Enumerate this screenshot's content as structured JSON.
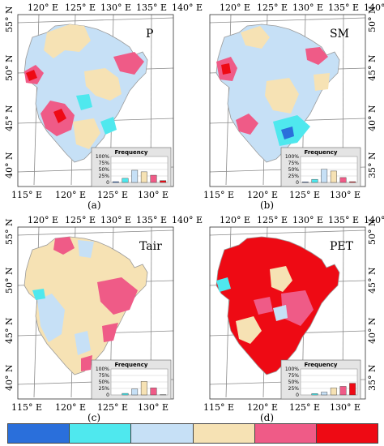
{
  "colors": {
    "c1": "#2a6fdb",
    "c2": "#4fe8ee",
    "c3": "#c6e0f6",
    "c4": "#f6e2b4",
    "c5": "#ef5b87",
    "c6": "#ee0a14",
    "outline": "#9a9a9a",
    "grid": "#7a7a7a",
    "inset_bg": "#e4e4e4"
  },
  "axes": {
    "top_ticks": [
      "120° E",
      "125° E",
      "130° E",
      "135° E",
      "140° E"
    ],
    "bottom_ticks": [
      "115° E",
      "120° E",
      "125° E",
      "130° E"
    ],
    "left_ticks": [
      "55° N",
      "50° N",
      "45° N",
      "40° N"
    ],
    "right_ticks": [
      "50° N",
      "45° N",
      "40° N",
      "35° N"
    ]
  },
  "panels": [
    {
      "id": "a",
      "label": "(a)",
      "var": "P",
      "inset": {
        "title": "Frequency",
        "yticks": [
          "100%",
          "75%",
          "50%",
          "25%",
          "0"
        ],
        "values": [
          0.03,
          0.16,
          0.47,
          0.41,
          0.28,
          0.07
        ]
      }
    },
    {
      "id": "b",
      "label": "(b)",
      "var": "SM",
      "inset": {
        "title": "Frequency",
        "yticks": [
          "100%",
          "75%",
          "50%",
          "25%",
          "0"
        ],
        "values": [
          0.02,
          0.12,
          0.51,
          0.44,
          0.19,
          0.03
        ]
      }
    },
    {
      "id": "c",
      "label": "(c)",
      "var": "Tair",
      "inset": {
        "title": "Frequency",
        "yticks": [
          "100%",
          "75%",
          "50%",
          "25%",
          "0"
        ],
        "values": [
          0.0,
          0.06,
          0.23,
          0.52,
          0.27,
          0.01
        ]
      }
    },
    {
      "id": "d",
      "label": "(d)",
      "var": "PET",
      "inset": {
        "title": "Frequency",
        "yticks": [
          "100%",
          "75%",
          "50%",
          "25%",
          "0"
        ],
        "values": [
          0.0,
          0.05,
          0.11,
          0.27,
          0.33,
          0.45
        ]
      }
    }
  ],
  "legend": {
    "colors": [
      "#2a6fdb",
      "#4fe8ee",
      "#c6e0f6",
      "#f6e2b4",
      "#ef5b87",
      "#ee0a14"
    ]
  }
}
